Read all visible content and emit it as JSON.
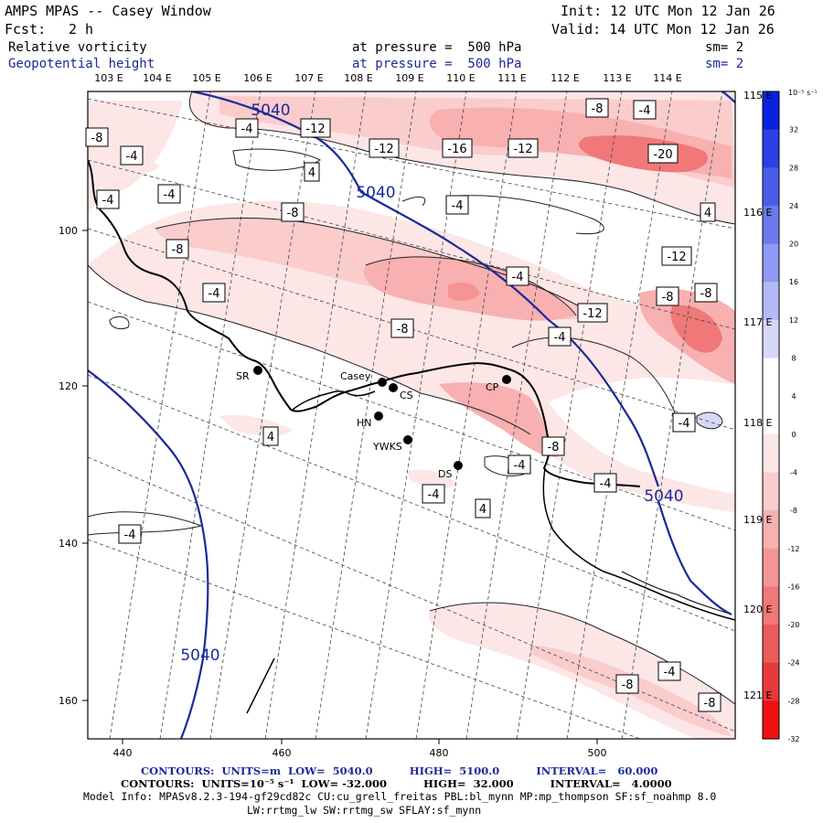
{
  "header": {
    "title": "AMPS MPAS -- Casey Window",
    "fcst_label": "Fcst:",
    "fcst_value": "2 h",
    "init": "Init: 12 UTC Mon 12 Jan 26",
    "valid": "Valid: 14 UTC Mon 12 Jan 26",
    "field1_name": "Relative vorticity",
    "field1_pressure": "at pressure =  500 hPa",
    "field1_sm": "sm= 2",
    "field2_name": "Geopotential height",
    "field2_pressure": "at pressure =  500 hPa",
    "field2_sm": "sm= 2"
  },
  "top_longitudes": [
    "103 E",
    "104 E",
    "105 E",
    "106 E",
    "107 E",
    "108 E",
    "109 E",
    "110 E",
    "111 E",
    "112 E",
    "113 E",
    "114 E"
  ],
  "right_longitudes": [
    "115 E",
    "116 E",
    "117 E",
    "118 E",
    "119 E",
    "120 E",
    "121 E"
  ],
  "x_ticks": [
    "440",
    "460",
    "480",
    "500"
  ],
  "y_ticks": [
    "100",
    "120",
    "140",
    "160"
  ],
  "colorbar": {
    "units": "10⁻⁵ s⁻¹",
    "labels": [
      "32",
      "28",
      "24",
      "20",
      "16",
      "12",
      "8",
      "4",
      "0",
      "-4",
      "-8",
      "-12",
      "-16",
      "-20",
      "-24",
      "-28",
      "-32"
    ],
    "colors": [
      "#0a22e0",
      "#2a40e6",
      "#4a5cea",
      "#6c7aee",
      "#8f98f2",
      "#b3b8f6",
      "#d6d8fa",
      "#ffffff",
      "#ffffff",
      "#fde6e6",
      "#fbcccc",
      "#f8b0b0",
      "#f59494",
      "#f07878",
      "#ec5a5a",
      "#e83a3a",
      "#f01010"
    ]
  },
  "stations": [
    "SR",
    "Casey",
    "CS",
    "CP",
    "HN",
    "YWKS",
    "DS"
  ],
  "vorticity_labels": [
    "-4",
    "-12",
    "-8",
    "-12",
    "-16",
    "-12",
    "-8",
    "-4",
    "-20",
    "-4",
    "4",
    "-4",
    "-4",
    "-8",
    "4",
    "-4",
    "-8",
    "-12",
    "-4",
    "-4",
    "-8",
    "-12",
    "-8",
    "-8",
    "-4",
    "-4",
    "4",
    "-8",
    "-4",
    "-4",
    "-4",
    "4",
    "-4",
    "-8",
    "-4",
    "-8"
  ],
  "height_labels": [
    "5040",
    "5040",
    "5040",
    "5040"
  ],
  "footer": {
    "contours1": "CONTOURS:  UNITS=m  LOW=  5040.0          HIGH=  5100.0          INTERVAL=   60.000",
    "contours2": "CONTOURS:  UNITS=10⁻⁵ s⁻¹  LOW= -32.000          HIGH=  32.000          INTERVAL=   4.0000",
    "model_info": "Model Info: MPASv8.2.3-194-gf29cd82c CU:cu_grell_freitas PBL:bl_mynn MP:mp_thompson SF:sf_noahmp 8.0",
    "model_info2": "LW:rrtmg_lw SW:rrtmg_sw SFLAY:sf_mynn"
  },
  "colors": {
    "height_contour": "#1a2a9a",
    "station_dot": "#000000"
  }
}
